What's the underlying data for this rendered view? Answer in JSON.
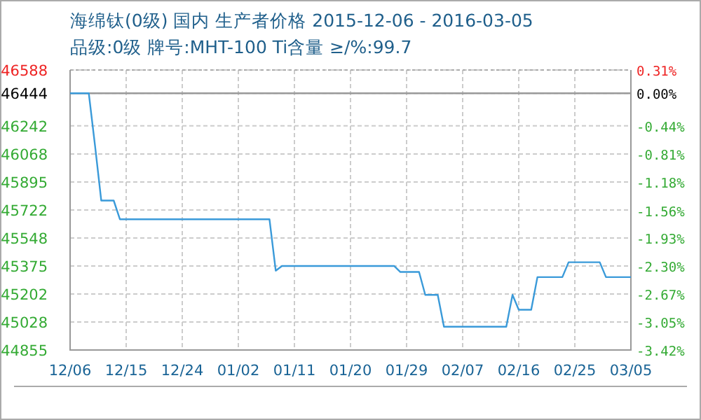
{
  "chart_data": {
    "type": "line",
    "title": "海绵钛(0级) 国内 生产者价格 2015-12-06 - 2016-03-05",
    "subtitle": "品级:0级 牌号:MHT-100 Ti含量 ≥/%:99.7",
    "x": [
      "2015-12-06",
      "2015-12-09",
      "2015-12-10",
      "2015-12-11",
      "2015-12-13",
      "2015-12-14",
      "2016-01-07",
      "2016-01-08",
      "2016-01-09",
      "2016-01-27",
      "2016-01-28",
      "2016-01-31",
      "2016-02-01",
      "2016-02-03",
      "2016-02-04",
      "2016-02-14",
      "2016-02-15",
      "2016-02-16",
      "2016-02-18",
      "2016-02-19",
      "2016-02-23",
      "2016-02-24",
      "2016-02-29",
      "2016-03-01",
      "2016-03-05"
    ],
    "series": [
      {
        "color": "#3a9ad9",
        "values": [
          46444,
          46444,
          46120,
          45780,
          45780,
          45664,
          45664,
          45346,
          45375,
          45375,
          45338,
          45338,
          45196,
          45196,
          44999,
          44999,
          45196,
          45104,
          45104,
          45306,
          45306,
          45398,
          45398,
          45306,
          45306
        ]
      }
    ],
    "xlim": [
      "2015-12-06",
      "2016-03-05"
    ],
    "xticks": [
      {
        "value": "2015-12-06",
        "label": "12/06"
      },
      {
        "value": "2015-12-15",
        "label": "12/15"
      },
      {
        "value": "2015-12-24",
        "label": "12/24"
      },
      {
        "value": "2016-01-02",
        "label": "01/02"
      },
      {
        "value": "2016-01-11",
        "label": "01/11"
      },
      {
        "value": "2016-01-20",
        "label": "01/20"
      },
      {
        "value": "2016-01-29",
        "label": "01/29"
      },
      {
        "value": "2016-02-07",
        "label": "02/07"
      },
      {
        "value": "2016-02-16",
        "label": "02/16"
      },
      {
        "value": "2016-02-25",
        "label": "02/25"
      },
      {
        "value": "2016-03-05",
        "label": "03/05"
      }
    ],
    "ylim": [
      44855,
      46588
    ],
    "yticks": [
      44855,
      45028,
      45202,
      45375,
      45548,
      45722,
      45895,
      46068,
      46242,
      46444,
      46588
    ],
    "y2lim": [
      -3.42,
      0.31
    ],
    "y2ticks": [
      {
        "value": -3.42,
        "label": "-3.42%"
      },
      {
        "value": -3.05,
        "label": "-3.05%"
      },
      {
        "value": -2.67,
        "label": "-2.67%"
      },
      {
        "value": -2.3,
        "label": "-2.30%"
      },
      {
        "value": -1.93,
        "label": "-1.93%"
      },
      {
        "value": -1.56,
        "label": "-1.56%"
      },
      {
        "value": -1.18,
        "label": "-1.18%"
      },
      {
        "value": -0.81,
        "label": "-0.81%"
      },
      {
        "value": -0.44,
        "label": "-0.44%"
      },
      {
        "value": 0,
        "label": "0.00%"
      },
      {
        "value": 0.31,
        "label": "0.31%"
      }
    ],
    "ref_lines": [
      {
        "axis": "y",
        "value": 46444,
        "color": "#999999"
      }
    ],
    "grid": true,
    "marker": "none",
    "line_style": "solid"
  }
}
